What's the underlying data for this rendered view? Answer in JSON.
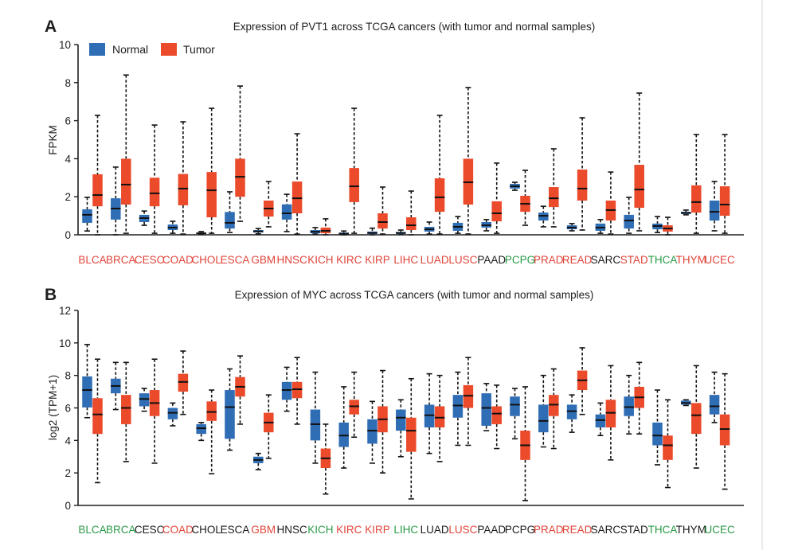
{
  "chart_data": [
    {
      "panel_label": "A",
      "type": "box",
      "title": "Expression of PVT1 across TCGA cancers (with tumor and normal samples)",
      "ylabel": "FPKM",
      "ylim": [
        0,
        10
      ],
      "yticks": [
        0,
        2,
        4,
        6,
        8,
        10
      ],
      "grid": false,
      "legend_position": "top-left",
      "categories": [
        "BLCA",
        "BRCA",
        "CESC",
        "COAD",
        "CHOL",
        "ESCA",
        "GBM",
        "HNSC",
        "KICH",
        "KIRC",
        "KIRP",
        "LIHC",
        "LUAD",
        "LUSC",
        "PAAD",
        "PCPG",
        "PRAD",
        "READ",
        "SARC",
        "STAD",
        "THCA",
        "THYM",
        "UCEC"
      ],
      "category_label_colors": [
        "#e0453a",
        "#e0453a",
        "#e0453a",
        "#e0453a",
        "#e0453a",
        "#e0453a",
        "#e0453a",
        "#e0453a",
        "#e0453a",
        "#e0453a",
        "#e0453a",
        "#e0453a",
        "#e0453a",
        "#e0453a",
        "#1c1c1c",
        "#2a9b48",
        "#e0453a",
        "#e0453a",
        "#1c1c1c",
        "#e0453a",
        "#2a9b48",
        "#e0453a",
        "#e0453a"
      ],
      "series": [
        {
          "name": "Normal",
          "color": "#2f6db5",
          "values": [
            {
              "min": 0.2,
              "q1": 0.63,
              "median": 1.05,
              "q3": 1.34,
              "max": 1.97
            },
            {
              "min": 0.0,
              "q1": 0.8,
              "median": 1.38,
              "q3": 1.92,
              "max": 3.56
            },
            {
              "min": 0.5,
              "q1": 0.67,
              "median": 0.88,
              "q3": 1.05,
              "max": 1.25
            },
            {
              "min": 0.08,
              "q1": 0.25,
              "median": 0.38,
              "q3": 0.54,
              "max": 0.71
            },
            {
              "min": 0.01,
              "q1": 0.04,
              "median": 0.08,
              "q3": 0.12,
              "max": 0.17
            },
            {
              "min": 0.12,
              "q1": 0.33,
              "median": 0.63,
              "q3": 1.2,
              "max": 2.26
            },
            {
              "min": 0.05,
              "q1": 0.12,
              "median": 0.18,
              "q3": 0.25,
              "max": 0.33
            },
            {
              "min": 0.17,
              "q1": 0.8,
              "median": 1.13,
              "q3": 1.6,
              "max": 2.13
            },
            {
              "min": 0.04,
              "q1": 0.08,
              "median": 0.16,
              "q3": 0.25,
              "max": 0.38
            },
            {
              "min": 0.0,
              "q1": 0.03,
              "median": 0.06,
              "q3": 0.12,
              "max": 0.2
            },
            {
              "min": 0.0,
              "q1": 0.04,
              "median": 0.1,
              "q3": 0.17,
              "max": 0.35
            },
            {
              "min": 0.01,
              "q1": 0.04,
              "median": 0.1,
              "q3": 0.15,
              "max": 0.25
            },
            {
              "min": 0.04,
              "q1": 0.17,
              "median": 0.29,
              "q3": 0.42,
              "max": 0.67
            },
            {
              "min": 0.08,
              "q1": 0.21,
              "median": 0.42,
              "q3": 0.63,
              "max": 0.96
            },
            {
              "min": 0.21,
              "q1": 0.38,
              "median": 0.5,
              "q3": 0.67,
              "max": 0.8
            },
            {
              "min": 2.34,
              "q1": 2.43,
              "median": 2.55,
              "q3": 2.68,
              "max": 2.76
            },
            {
              "min": 0.42,
              "q1": 0.75,
              "median": 1.0,
              "q3": 1.17,
              "max": 1.5
            },
            {
              "min": 0.21,
              "q1": 0.29,
              "median": 0.38,
              "q3": 0.5,
              "max": 0.59
            },
            {
              "min": 0.08,
              "q1": 0.21,
              "median": 0.38,
              "q3": 0.59,
              "max": 0.8
            },
            {
              "min": 0.08,
              "q1": 0.33,
              "median": 0.75,
              "q3": 1.05,
              "max": 1.97
            },
            {
              "min": 0.12,
              "q1": 0.29,
              "median": 0.46,
              "q3": 0.59,
              "max": 0.96
            },
            {
              "min": 1.05,
              "q1": 1.09,
              "median": 1.15,
              "q3": 1.21,
              "max": 1.3
            },
            {
              "min": 0.21,
              "q1": 0.75,
              "median": 1.21,
              "q3": 1.8,
              "max": 2.8
            }
          ]
        },
        {
          "name": "Tumor",
          "color": "#eb4a2b",
          "values": [
            {
              "min": 0.0,
              "q1": 1.5,
              "median": 2.09,
              "q3": 3.18,
              "max": 6.28
            },
            {
              "min": 0.08,
              "q1": 1.59,
              "median": 2.64,
              "q3": 4.0,
              "max": 8.4
            },
            {
              "min": 0.08,
              "q1": 1.5,
              "median": 2.18,
              "q3": 3.0,
              "max": 5.77
            },
            {
              "min": 0.04,
              "q1": 1.55,
              "median": 2.43,
              "q3": 3.2,
              "max": 5.94
            },
            {
              "min": 0.08,
              "q1": 0.92,
              "median": 2.34,
              "q3": 3.3,
              "max": 6.65
            },
            {
              "min": 0.71,
              "q1": 2.0,
              "median": 3.05,
              "q3": 4.0,
              "max": 7.82
            },
            {
              "min": 0.42,
              "q1": 0.96,
              "median": 1.38,
              "q3": 1.8,
              "max": 2.8
            },
            {
              "min": 0.04,
              "q1": 1.13,
              "median": 1.92,
              "q3": 2.8,
              "max": 5.31
            },
            {
              "min": 0.0,
              "q1": 0.08,
              "median": 0.21,
              "q3": 0.38,
              "max": 0.84
            },
            {
              "min": 0.08,
              "q1": 1.72,
              "median": 2.55,
              "q3": 3.51,
              "max": 6.65
            },
            {
              "min": 0.04,
              "q1": 0.33,
              "median": 0.67,
              "q3": 1.13,
              "max": 2.51
            },
            {
              "min": 0.0,
              "q1": 0.25,
              "median": 0.5,
              "q3": 0.92,
              "max": 2.3
            },
            {
              "min": 0.04,
              "q1": 1.21,
              "median": 1.97,
              "q3": 2.97,
              "max": 6.28
            },
            {
              "min": 0.04,
              "q1": 1.59,
              "median": 2.76,
              "q3": 4.0,
              "max": 7.74
            },
            {
              "min": 0.08,
              "q1": 0.71,
              "median": 1.13,
              "q3": 1.76,
              "max": 3.77
            },
            {
              "min": 0.5,
              "q1": 1.21,
              "median": 1.63,
              "q3": 2.05,
              "max": 3.39
            },
            {
              "min": 0.42,
              "q1": 1.46,
              "median": 1.92,
              "q3": 2.51,
              "max": 4.52
            },
            {
              "min": 0.25,
              "q1": 1.8,
              "median": 2.43,
              "q3": 3.43,
              "max": 6.15
            },
            {
              "min": 0.04,
              "q1": 0.75,
              "median": 1.3,
              "q3": 1.8,
              "max": 3.3
            },
            {
              "min": 0.21,
              "q1": 1.42,
              "median": 2.38,
              "q3": 3.68,
              "max": 7.45
            },
            {
              "min": 0.0,
              "q1": 0.17,
              "median": 0.33,
              "q3": 0.5,
              "max": 0.92
            },
            {
              "min": 0.08,
              "q1": 1.17,
              "median": 1.72,
              "q3": 2.6,
              "max": 5.27
            },
            {
              "min": 0.08,
              "q1": 1.0,
              "median": 1.59,
              "q3": 2.55,
              "max": 5.27
            }
          ]
        }
      ]
    },
    {
      "panel_label": "B",
      "type": "box",
      "title": "Expression of MYC across TCGA cancers (with tumor and normal samples)",
      "ylabel": "log2 (TPM+1)",
      "ylim": [
        0,
        12
      ],
      "yticks": [
        0,
        2,
        4,
        6,
        8,
        10,
        12
      ],
      "grid": false,
      "categories": [
        "BLCA",
        "BRCA",
        "CESC",
        "COAD",
        "CHOL",
        "ESCA",
        "GBM",
        "HNSC",
        "KICH",
        "KIRC",
        "KIRP",
        "LIHC",
        "LUAD",
        "LUSC",
        "PAAD",
        "PCPG",
        "PRAD",
        "READ",
        "SARC",
        "STAD",
        "THCA",
        "THYM",
        "UCEC"
      ],
      "category_label_colors": [
        "#2a9b48",
        "#2a9b48",
        "#1c1c1c",
        "#e0453a",
        "#1c1c1c",
        "#1c1c1c",
        "#e0453a",
        "#1c1c1c",
        "#2a9b48",
        "#e0453a",
        "#e0453a",
        "#2a9b48",
        "#1c1c1c",
        "#e0453a",
        "#1c1c1c",
        "#1c1c1c",
        "#e0453a",
        "#e0453a",
        "#1c1c1c",
        "#1c1c1c",
        "#2a9b48",
        "#1c1c1c",
        "#2a9b48"
      ],
      "series": [
        {
          "color": "#2f6db5",
          "values": [
            {
              "min": 5.4,
              "q1": 6.03,
              "median": 7.1,
              "q3": 7.94,
              "max": 9.9
            },
            {
              "min": 5.9,
              "q1": 6.9,
              "median": 7.35,
              "q3": 7.8,
              "max": 8.8
            },
            {
              "min": 5.8,
              "q1": 6.1,
              "median": 6.55,
              "q3": 6.9,
              "max": 7.2
            },
            {
              "min": 4.9,
              "q1": 5.3,
              "median": 5.7,
              "q3": 6.0,
              "max": 6.3
            },
            {
              "min": 4.0,
              "q1": 4.4,
              "median": 4.75,
              "q3": 5.0,
              "max": 5.1
            },
            {
              "min": 3.4,
              "q1": 4.1,
              "median": 6.05,
              "q3": 7.1,
              "max": 8.4
            },
            {
              "min": 2.2,
              "q1": 2.6,
              "median": 2.8,
              "q3": 3.0,
              "max": 3.2
            },
            {
              "min": 5.8,
              "q1": 6.5,
              "median": 7.1,
              "q3": 7.6,
              "max": 8.5
            },
            {
              "min": 2.6,
              "q1": 4.0,
              "median": 5.0,
              "q3": 5.9,
              "max": 8.2
            },
            {
              "min": 2.3,
              "q1": 3.6,
              "median": 4.3,
              "q3": 5.1,
              "max": 7.3
            },
            {
              "min": 2.6,
              "q1": 3.8,
              "median": 4.6,
              "q3": 5.3,
              "max": 6.4
            },
            {
              "min": 3.0,
              "q1": 4.6,
              "median": 5.4,
              "q3": 5.9,
              "max": 6.5
            },
            {
              "min": 3.2,
              "q1": 4.8,
              "median": 5.55,
              "q3": 6.2,
              "max": 8.1
            },
            {
              "min": 3.7,
              "q1": 5.4,
              "median": 6.15,
              "q3": 6.8,
              "max": 8.2
            },
            {
              "min": 4.6,
              "q1": 4.9,
              "median": 6.0,
              "q3": 6.9,
              "max": 7.5
            },
            {
              "min": 4.1,
              "q1": 5.5,
              "median": 6.2,
              "q3": 6.7,
              "max": 7.2
            },
            {
              "min": 3.6,
              "q1": 4.5,
              "median": 5.2,
              "q3": 6.2,
              "max": 8.0
            },
            {
              "min": 4.5,
              "q1": 5.3,
              "median": 5.8,
              "q3": 6.2,
              "max": 6.8
            },
            {
              "min": 4.3,
              "q1": 4.8,
              "median": 5.25,
              "q3": 5.6,
              "max": 6.3
            },
            {
              "min": 4.4,
              "q1": 5.5,
              "median": 6.05,
              "q3": 6.7,
              "max": 8.0
            },
            {
              "min": 2.5,
              "q1": 3.7,
              "median": 4.3,
              "q3": 5.1,
              "max": 7.1
            },
            {
              "min": 6.15,
              "q1": 6.2,
              "median": 6.3,
              "q3": 6.45,
              "max": 6.5
            },
            {
              "min": 5.1,
              "q1": 5.6,
              "median": 6.1,
              "q3": 6.8,
              "max": 8.2
            }
          ]
        },
        {
          "color": "#eb4a2b",
          "values": [
            {
              "min": 1.4,
              "q1": 4.4,
              "median": 5.6,
              "q3": 6.6,
              "max": 9.0
            },
            {
              "min": 2.7,
              "q1": 5.0,
              "median": 6.0,
              "q3": 6.8,
              "max": 8.8
            },
            {
              "min": 2.6,
              "q1": 5.5,
              "median": 6.3,
              "q3": 7.1,
              "max": 9.0
            },
            {
              "min": 5.6,
              "q1": 7.0,
              "median": 7.6,
              "q3": 8.1,
              "max": 9.5
            },
            {
              "min": 1.95,
              "q1": 5.2,
              "median": 5.75,
              "q3": 6.4,
              "max": 7.1
            },
            {
              "min": 5.0,
              "q1": 6.7,
              "median": 7.3,
              "q3": 7.9,
              "max": 9.2
            },
            {
              "min": 2.9,
              "q1": 4.5,
              "median": 5.1,
              "q3": 5.7,
              "max": 6.8
            },
            {
              "min": 5.0,
              "q1": 6.6,
              "median": 7.15,
              "q3": 7.6,
              "max": 9.1
            },
            {
              "min": 0.7,
              "q1": 2.3,
              "median": 2.9,
              "q3": 3.5,
              "max": 5.0
            },
            {
              "min": 4.2,
              "q1": 5.6,
              "median": 6.1,
              "q3": 6.5,
              "max": 8.2
            },
            {
              "min": 2.0,
              "q1": 4.5,
              "median": 5.3,
              "q3": 6.1,
              "max": 8.3
            },
            {
              "min": 0.4,
              "q1": 3.3,
              "median": 4.6,
              "q3": 5.4,
              "max": 7.8
            },
            {
              "min": 2.7,
              "q1": 4.8,
              "median": 5.4,
              "q3": 6.1,
              "max": 8.0
            },
            {
              "min": 3.7,
              "q1": 6.0,
              "median": 6.75,
              "q3": 7.4,
              "max": 9.1
            },
            {
              "min": 3.5,
              "q1": 5.0,
              "median": 5.65,
              "q3": 6.1,
              "max": 7.4
            },
            {
              "min": 0.3,
              "q1": 2.8,
              "median": 3.7,
              "q3": 4.6,
              "max": 7.3
            },
            {
              "min": 3.5,
              "q1": 5.5,
              "median": 6.2,
              "q3": 6.8,
              "max": 8.4
            },
            {
              "min": 5.6,
              "q1": 7.1,
              "median": 7.7,
              "q3": 8.3,
              "max": 9.7
            },
            {
              "min": 2.8,
              "q1": 4.8,
              "median": 5.7,
              "q3": 6.5,
              "max": 8.6
            },
            {
              "min": 4.4,
              "q1": 6.0,
              "median": 6.65,
              "q3": 7.3,
              "max": 8.8
            },
            {
              "min": 1.1,
              "q1": 2.8,
              "median": 3.7,
              "q3": 4.3,
              "max": 6.5
            },
            {
              "min": 2.3,
              "q1": 4.4,
              "median": 5.55,
              "q3": 6.3,
              "max": 8.6
            },
            {
              "min": 1.0,
              "q1": 3.7,
              "median": 4.7,
              "q3": 5.6,
              "max": 8.1
            }
          ]
        }
      ]
    }
  ]
}
